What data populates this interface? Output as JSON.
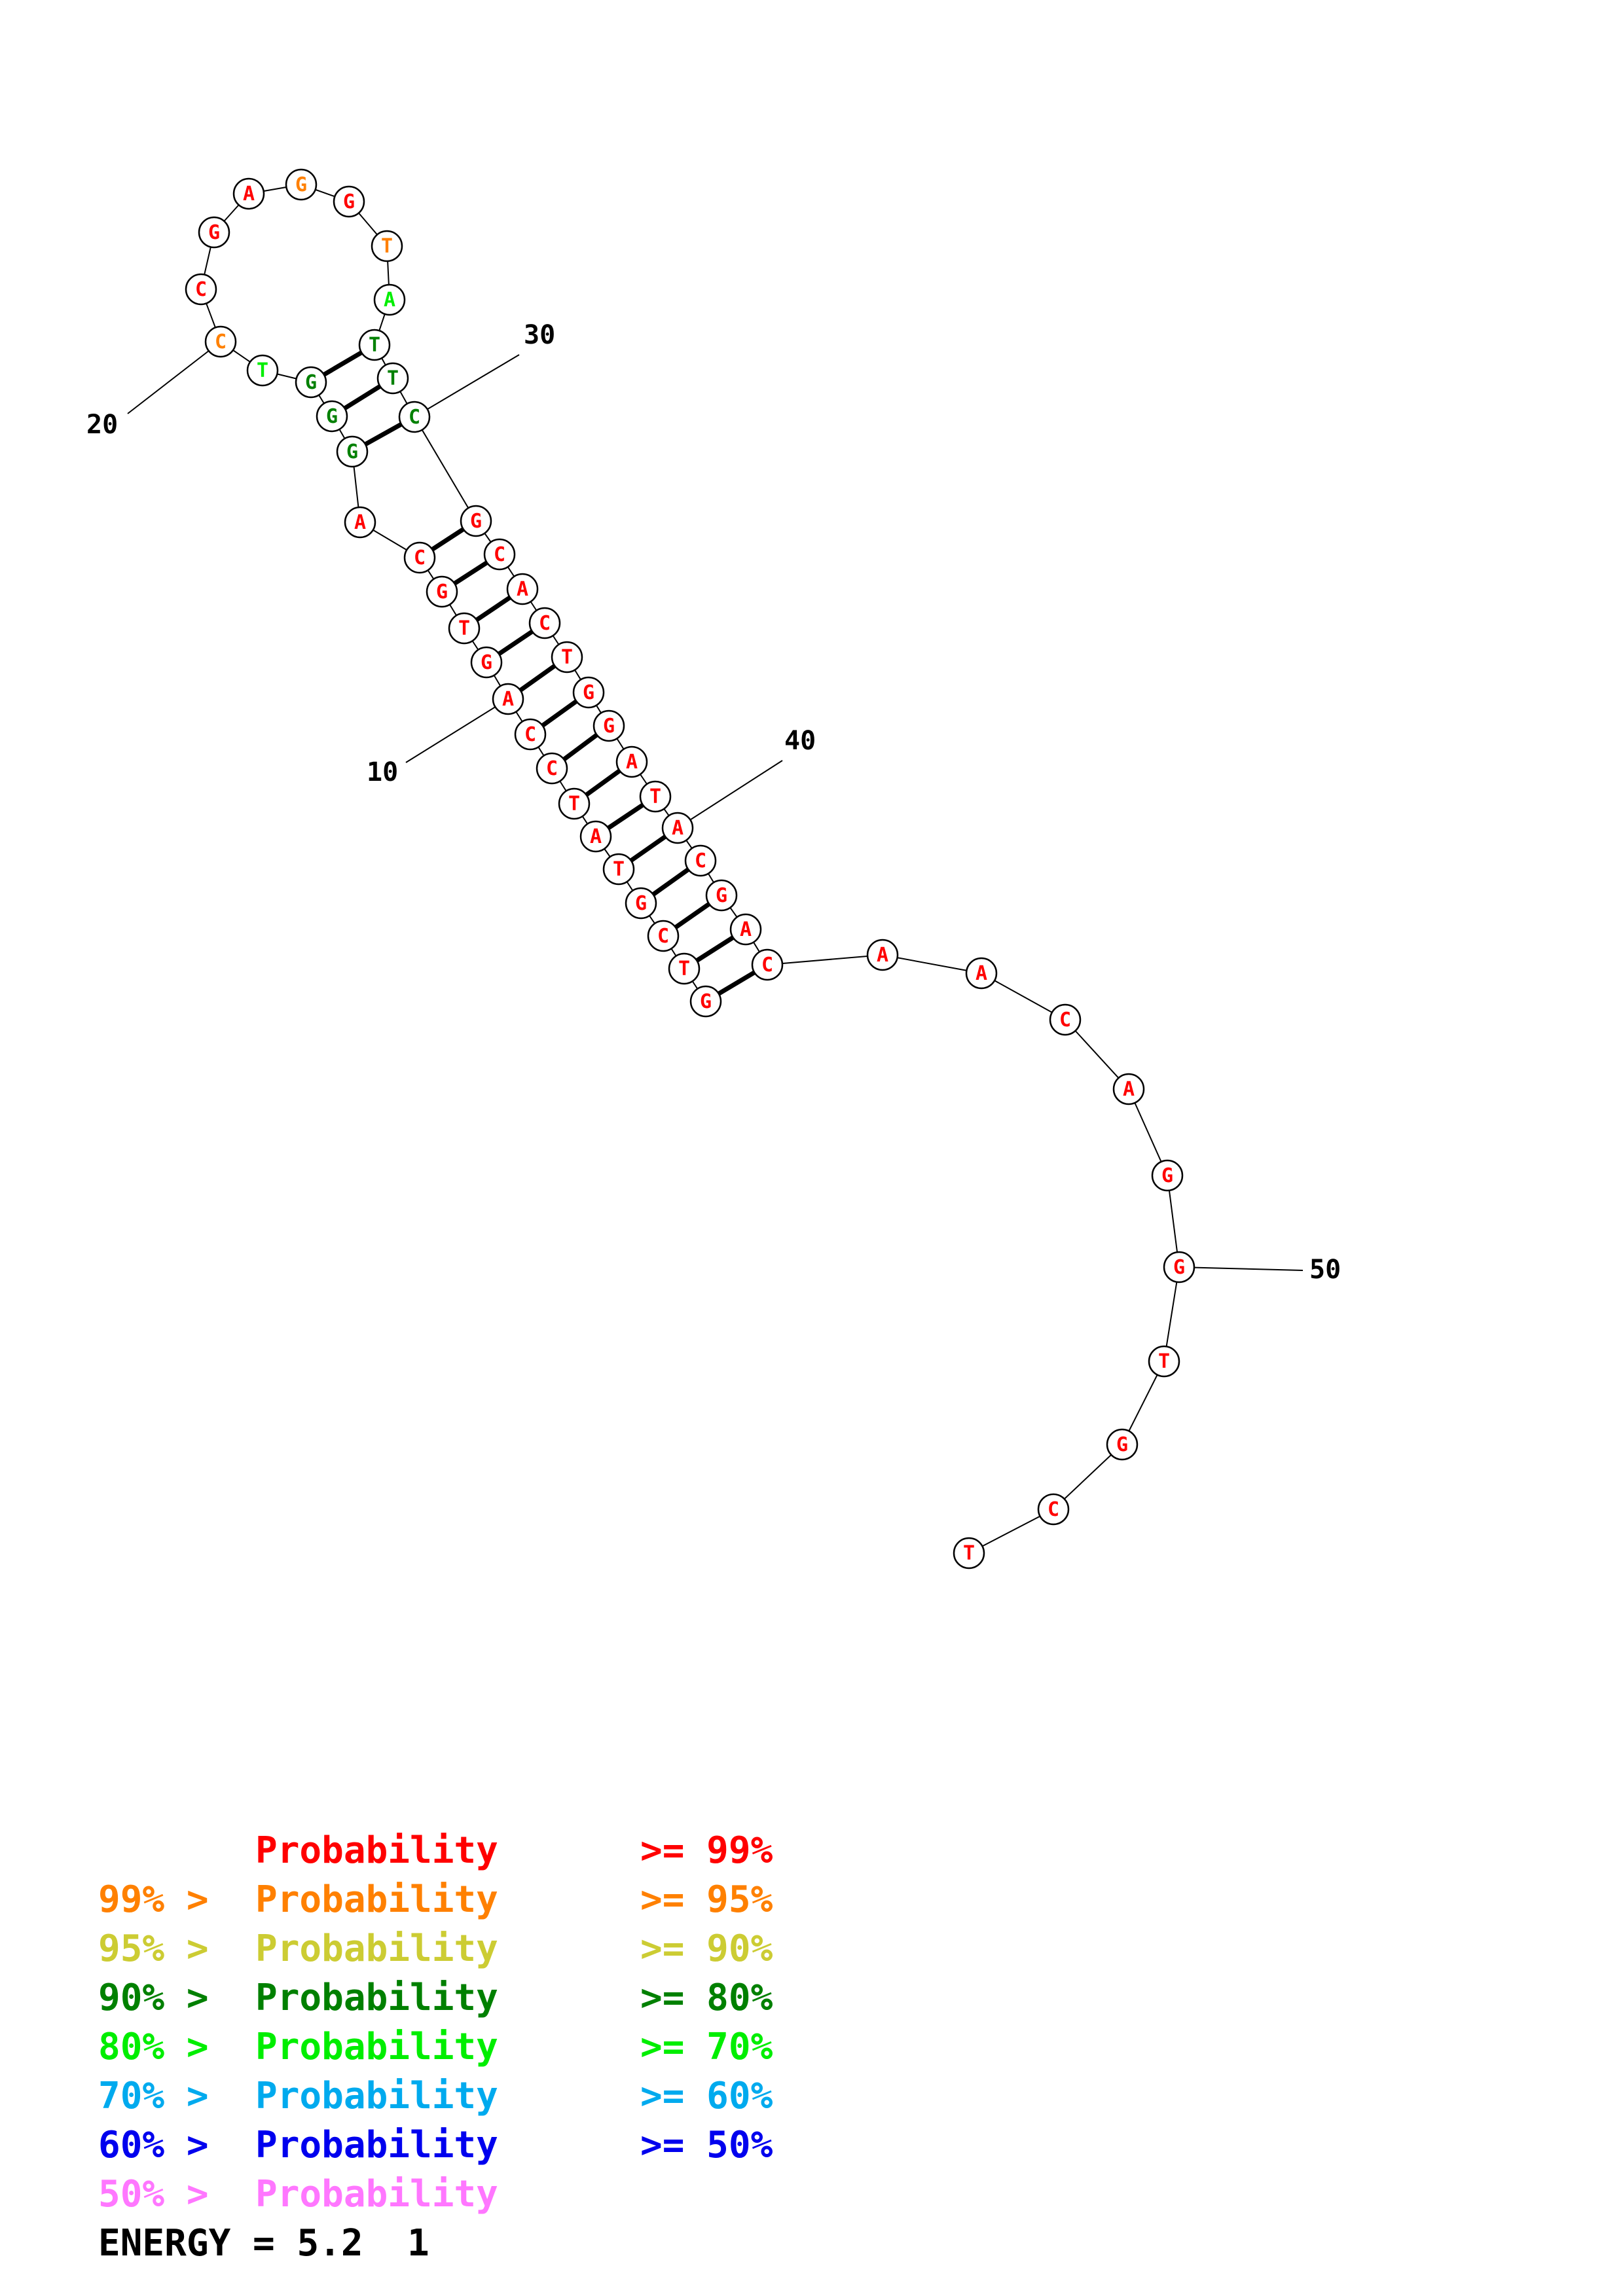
{
  "sequence": [
    "G",
    "T",
    "C",
    "G",
    "T",
    "A",
    "T",
    "C",
    "C",
    "A",
    "G",
    "T",
    "G",
    "C",
    "A",
    "G",
    "G",
    "G",
    "T",
    "C",
    "C",
    "G",
    "A",
    "G",
    "G",
    "T",
    "A",
    "T",
    "T",
    "C",
    "G",
    "C",
    "A",
    "C",
    "T",
    "G",
    "G",
    "A",
    "T",
    "A",
    "C",
    "G",
    "A",
    "C",
    "A",
    "A",
    "C",
    "A",
    "G",
    "G",
    "T",
    "G",
    "C",
    "T"
  ],
  "probability_colors": {
    "p99": "#ff0000",
    "p95": "#ff8000",
    "p90": "#cccc33",
    "p80": "#008000",
    "p70": "#00ee00",
    "p60": "#00aaee",
    "p50": "#0000ee",
    "below50": "#ff77ff"
  },
  "base_probability_class": [
    "p99",
    "p99",
    "p99",
    "p99",
    "p99",
    "p99",
    "p99",
    "p99",
    "p99",
    "p99",
    "p99",
    "p99",
    "p99",
    "p99",
    "p99",
    "p80",
    "p80",
    "p80",
    "p70",
    "p95",
    "p99",
    "p99",
    "p99",
    "p95",
    "p99",
    "p95",
    "p70",
    "p80",
    "p80",
    "p80",
    "p99",
    "p99",
    "p99",
    "p99",
    "p99",
    "p99",
    "p99",
    "p99",
    "p99",
    "p99",
    "p99",
    "p99",
    "p99",
    "p99",
    "p99",
    "p99",
    "p99",
    "p99",
    "p99",
    "p99",
    "p99",
    "p99",
    "p99",
    "p99"
  ],
  "base_pairs": [
    [
      1,
      44
    ],
    [
      2,
      43
    ],
    [
      3,
      42
    ],
    [
      4,
      41
    ],
    [
      5,
      40
    ],
    [
      6,
      39
    ],
    [
      7,
      38
    ],
    [
      8,
      37
    ],
    [
      9,
      36
    ],
    [
      10,
      35
    ],
    [
      11,
      34
    ],
    [
      12,
      33
    ],
    [
      13,
      32
    ],
    [
      14,
      31
    ],
    [
      16,
      30
    ],
    [
      17,
      29
    ],
    [
      18,
      28
    ]
  ],
  "position_labels": [
    {
      "position": 10,
      "text": "10"
    },
    {
      "position": 20,
      "text": "20"
    },
    {
      "position": 30,
      "text": "30"
    },
    {
      "position": 40,
      "text": "40"
    },
    {
      "position": 50,
      "text": "50"
    }
  ],
  "legend": [
    {
      "lower": "",
      "middle": "Probability",
      "upper": ">= 99%",
      "color": "#ff0000"
    },
    {
      "lower": "99% >",
      "middle": "Probability",
      "upper": ">= 95%",
      "color": "#ff8000"
    },
    {
      "lower": "95% >",
      "middle": "Probability",
      "upper": ">= 90%",
      "color": "#cccc33"
    },
    {
      "lower": "90% >",
      "middle": "Probability",
      "upper": ">= 80%",
      "color": "#008000"
    },
    {
      "lower": "80% >",
      "middle": "Probability",
      "upper": ">= 70%",
      "color": "#00ee00"
    },
    {
      "lower": "70% >",
      "middle": "Probability",
      "upper": ">= 60%",
      "color": "#00aaee"
    },
    {
      "lower": "60% >",
      "middle": "Probability",
      "upper": ">= 50%",
      "color": "#0000ee"
    },
    {
      "lower": "50% >",
      "middle": "Probability",
      "upper": "",
      "color": "#ff77ff"
    }
  ],
  "energy": {
    "label": "ENERGY =",
    "value": "5.2",
    "structure_number": "1"
  }
}
